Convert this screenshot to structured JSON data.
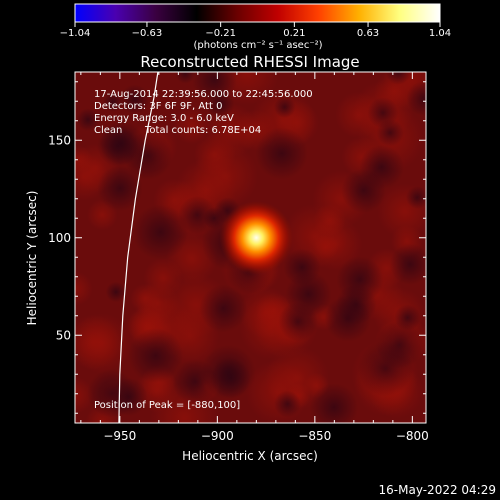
{
  "chart_data": {
    "type": "heatmap",
    "title": "Reconstructed RHESSI Image",
    "xlabel": "Heliocentric X (arcsec)",
    "ylabel": "Heliocentric Y (arcsec)",
    "xlim": [
      -973,
      -793
    ],
    "ylim": [
      5,
      185
    ],
    "x_ticks": [
      -950,
      -900,
      -850,
      -800
    ],
    "y_ticks": [
      50,
      100,
      150
    ],
    "x_tick_labels": [
      "−950",
      "−900",
      "−850",
      "−800"
    ],
    "y_tick_labels": [
      "50",
      "100",
      "150"
    ],
    "peak": {
      "x": -880,
      "y": 100,
      "value": 1.04
    },
    "source_sigma_arcsec": 4.5,
    "colorbar": {
      "range": [
        -1.04,
        1.04
      ],
      "ticks": [
        -1.04,
        -0.63,
        -0.21,
        0.21,
        0.63,
        1.04
      ],
      "tick_labels": [
        "−1.04",
        "−0.63",
        "−0.21",
        "0.21",
        "0.63",
        "1.04"
      ],
      "unit_label": "(photons cm⁻² s⁻¹ asec⁻²)",
      "colors": [
        "#0000ff",
        "#4a00b0",
        "#3a0040",
        "#000000",
        "#6a0000",
        "#c00000",
        "#ff4000",
        "#ffb000",
        "#ffff80",
        "#ffffff"
      ]
    },
    "grid": false,
    "limb_curve": [
      {
        "x": -950.5,
        "y": 5
      },
      {
        "x": -950.0,
        "y": 30
      },
      {
        "x": -948.5,
        "y": 60
      },
      {
        "x": -946.0,
        "y": 90
      },
      {
        "x": -942.0,
        "y": 120
      },
      {
        "x": -937.0,
        "y": 150
      },
      {
        "x": -932.5,
        "y": 172
      },
      {
        "x": -930.5,
        "y": 185
      }
    ]
  },
  "annotations": {
    "line1": "17-Aug-2014 22:39:56.000 to 22:45:56.000",
    "line2": "Detectors: 3F 6F 9F, Att 0",
    "line3": "Energy Range: 3.0 - 6.0 keV",
    "line4_a": "Clean",
    "line4_b": "Total counts: 6.78E+04",
    "peak_text": "Position of Peak = [-880,100]"
  },
  "footer": {
    "timestamp": "16-May-2022 04:29"
  }
}
